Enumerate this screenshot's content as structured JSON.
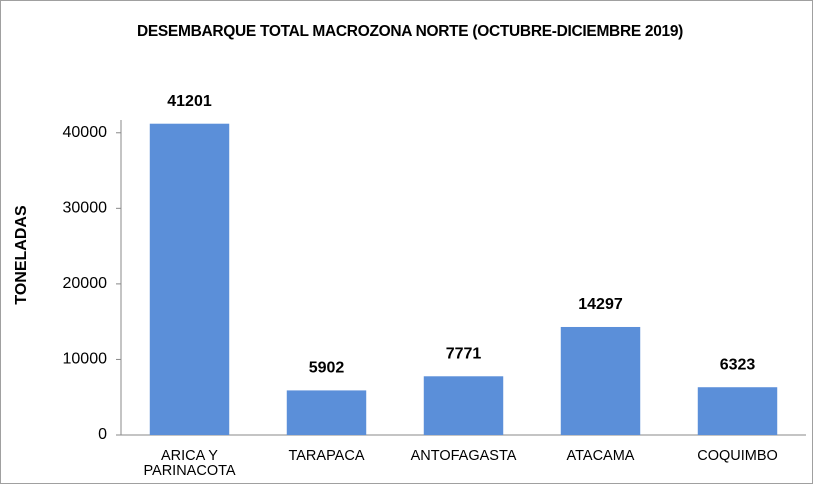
{
  "chart_data": {
    "type": "bar",
    "title": "DESEMBARQUE TOTAL MACROZONA NORTE (OCTUBRE-DICIEMBRE 2019)",
    "ylabel": "TONELADAS",
    "categories": [
      "ARICA Y PARINACOTA",
      "TARAPACA",
      "ANTOFAGASTA",
      "ATACAMA",
      "COQUIMBO"
    ],
    "values": [
      41201,
      5902,
      7771,
      14297,
      6323
    ],
    "color": "#5b8fd9",
    "ylim": [
      0,
      45000
    ],
    "yticks": [
      0,
      10000,
      20000,
      30000,
      40000
    ],
    "grid": false
  }
}
